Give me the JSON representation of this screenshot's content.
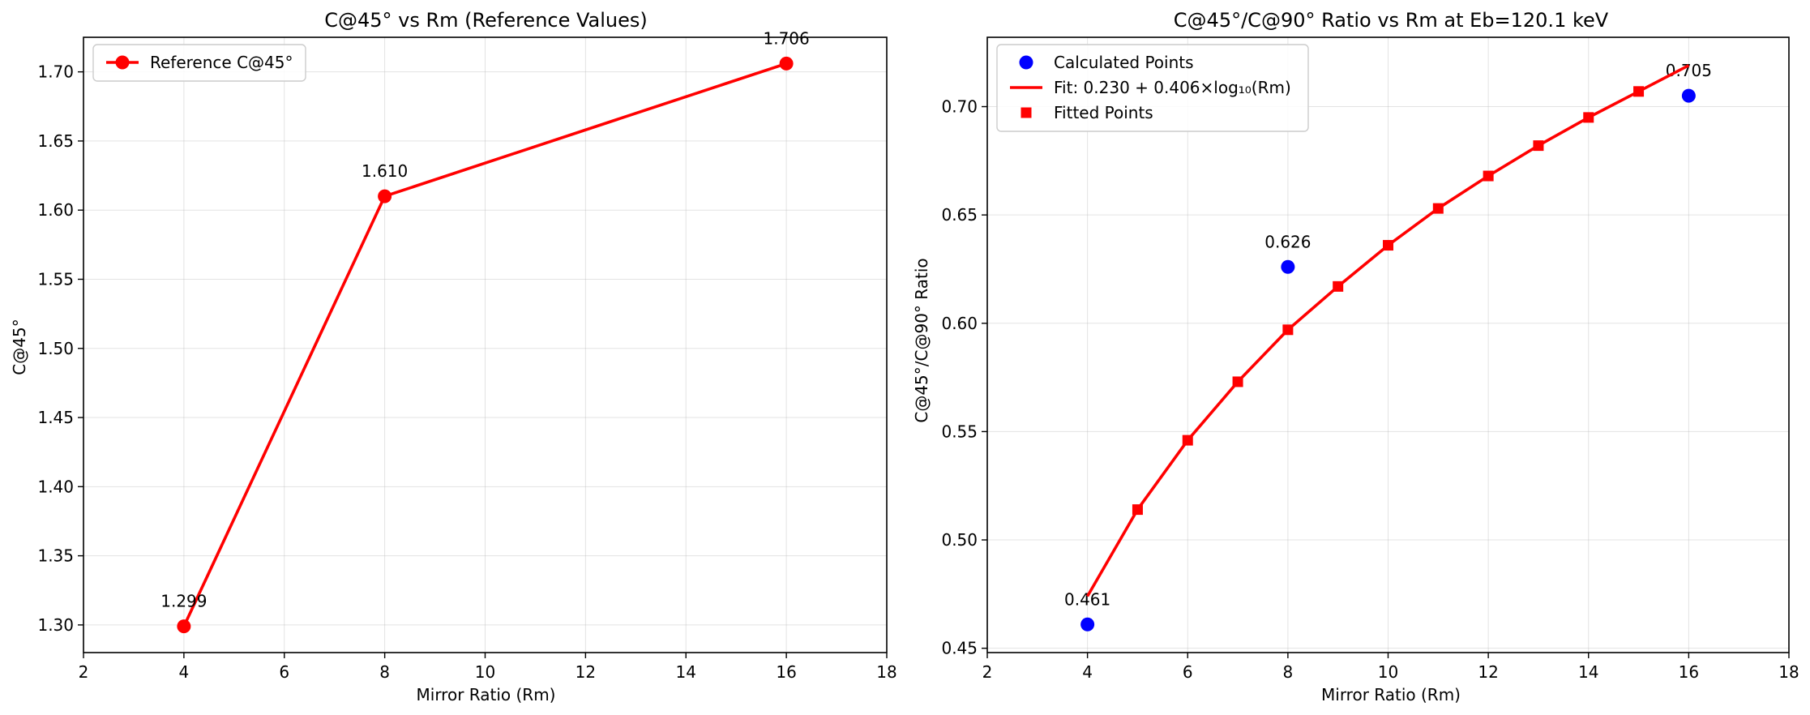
{
  "chart_data": [
    {
      "type": "line",
      "title": "C@45° vs Rm (Reference Values)",
      "xlabel": "Mirror Ratio (Rm)",
      "ylabel": "C@45°",
      "xlim": [
        2,
        18
      ],
      "ylim": [
        1.28,
        1.725
      ],
      "xticks": [
        "2",
        "4",
        "6",
        "8",
        "10",
        "12",
        "14",
        "16",
        "18"
      ],
      "yticks": [
        "1.30",
        "1.35",
        "1.40",
        "1.45",
        "1.50",
        "1.55",
        "1.60",
        "1.65",
        "1.70"
      ],
      "grid": true,
      "legend_position": "upper-left",
      "series": [
        {
          "name": "Reference C@45°",
          "marker": "circle",
          "line": true,
          "color": "#ff0000",
          "x": [
            4,
            8,
            16
          ],
          "y": [
            1.299,
            1.61,
            1.706
          ],
          "labels": [
            "1.299",
            "1.610",
            "1.706"
          ]
        }
      ]
    },
    {
      "type": "line",
      "title": "C@45°/C@90° Ratio vs Rm at Eb=120.1 keV",
      "xlabel": "Mirror Ratio (Rm)",
      "ylabel": "C@45°/C@90° Ratio",
      "xlim": [
        2,
        18
      ],
      "ylim": [
        0.448,
        0.732
      ],
      "xticks": [
        "2",
        "4",
        "6",
        "8",
        "10",
        "12",
        "14",
        "16",
        "18"
      ],
      "yticks": [
        "0.45",
        "0.50",
        "0.55",
        "0.60",
        "0.65",
        "0.70"
      ],
      "grid": true,
      "legend_position": "upper-left",
      "series": [
        {
          "name": "Calculated Points",
          "marker": "circle",
          "line": false,
          "color": "#0000ff",
          "x": [
            4,
            8,
            16
          ],
          "y": [
            0.461,
            0.626,
            0.705
          ],
          "labels": [
            "0.461",
            "0.626",
            "0.705"
          ]
        },
        {
          "name": "Fit: 0.230 + 0.406×log₁₀(Rm)",
          "marker": "none",
          "line": true,
          "color": "#ff0000",
          "x": [
            4,
            5,
            6,
            7,
            8,
            9,
            10,
            11,
            12,
            13,
            14,
            15,
            16
          ],
          "y": [
            0.474,
            0.514,
            0.546,
            0.573,
            0.597,
            0.617,
            0.636,
            0.653,
            0.668,
            0.682,
            0.695,
            0.707,
            0.719
          ]
        },
        {
          "name": "Fitted Points",
          "marker": "square",
          "line": false,
          "color": "#ff0000",
          "x": [
            5,
            6,
            7,
            8,
            9,
            10,
            11,
            12,
            13,
            14,
            15
          ],
          "y": [
            0.514,
            0.546,
            0.573,
            0.597,
            0.617,
            0.636,
            0.653,
            0.668,
            0.682,
            0.695,
            0.707
          ]
        }
      ]
    }
  ]
}
